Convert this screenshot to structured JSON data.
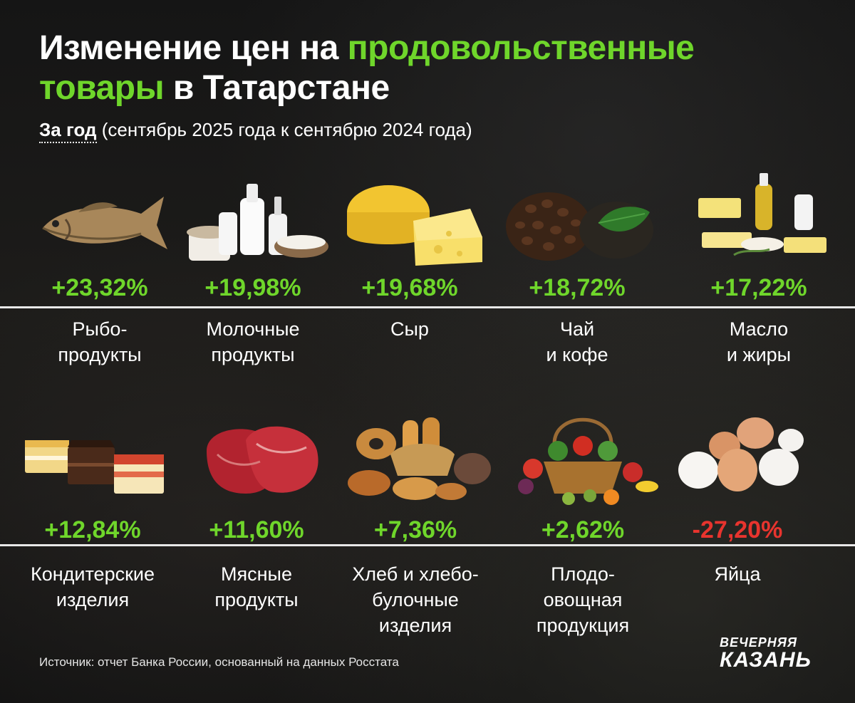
{
  "title": {
    "part1": "Изменение цен на ",
    "part2": "продовольственные",
    "part3": "товары",
    "part4": " в Татарстане"
  },
  "subtitle": {
    "period": "За год",
    "rest": " (сентябрь 2025 года к сентябрю 2024 года)"
  },
  "colors": {
    "increase": "#6fd62b",
    "decrease": "#e8342e"
  },
  "items": [
    {
      "value": "+23,32%",
      "label": "Рыбо-\nпродукты",
      "icon": "fish-icon"
    },
    {
      "value": "+19,98%",
      "label": "Молочные\nпродукты",
      "icon": "dairy-icon"
    },
    {
      "value": "+19,68%",
      "label": "Сыр",
      "icon": "cheese-icon"
    },
    {
      "value": "+18,72%",
      "label": "Чай\nи кофе",
      "icon": "tea-coffee-icon"
    },
    {
      "value": "+17,22%",
      "label": "Масло\nи жиры",
      "icon": "butter-oil-icon"
    },
    {
      "value": "+12,84%",
      "label": "Кондитерские\nизделия",
      "icon": "cakes-icon"
    },
    {
      "value": "+11,60%",
      "label": "Мясные\nпродукты",
      "icon": "meat-icon"
    },
    {
      "value": "+7,36%",
      "label": "Хлеб и хлебо-\nбулочные\nизделия",
      "icon": "bread-icon"
    },
    {
      "value": "+2,62%",
      "label": "Плодо-\nовощная\nпродукция",
      "icon": "vegetables-basket-icon"
    },
    {
      "value": "-27,20%",
      "label": "Яйца",
      "icon": "eggs-icon"
    }
  ],
  "source": "Источник: отчет Банка России, основанный на данных Росстата",
  "logo": {
    "line1": "ВЕЧЕРНЯЯ",
    "line2": "КАЗАНЬ"
  }
}
